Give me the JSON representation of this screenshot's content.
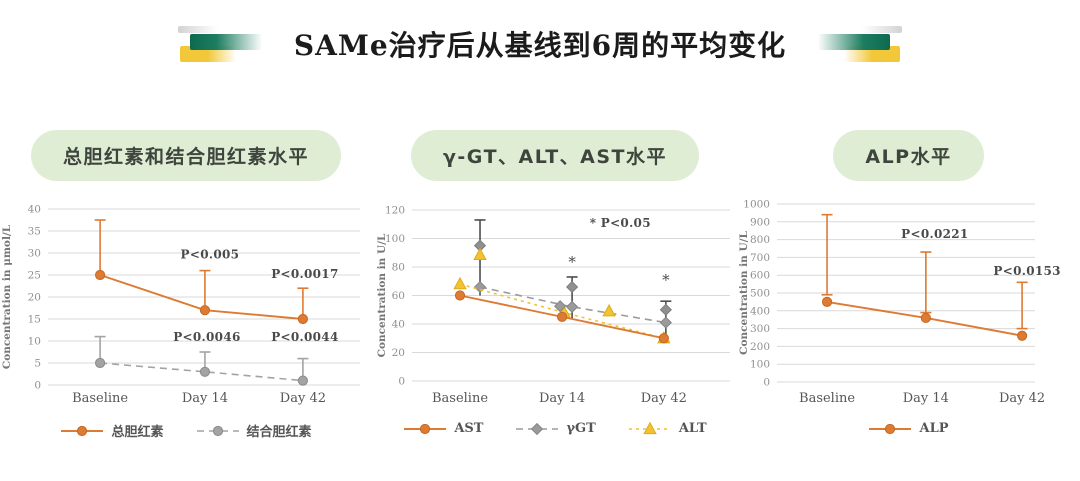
{
  "title": "SAMe治疗后从基线到6周的平均变化",
  "colors": {
    "accent_orange": "#dd7a33",
    "accent_gray": "#a3a3a3",
    "accent_yellow": "#f1c232",
    "errorbar_dark": "#4d4d4d",
    "pill_bg": "#e0edd5",
    "deco_green": "#0d6a4e",
    "deco_yellow": "#f2c83a",
    "grid": "#d9d9d9"
  },
  "chart_data": [
    {
      "type": "line",
      "header": "总胆红素和结合胆红素水平",
      "ylabel": "Concentration in μmol/L",
      "ylim": [
        0,
        40
      ],
      "ystep": 5,
      "grid": true,
      "legend_position": "bottom",
      "categories": [
        "Baseline",
        "Day 14",
        "Day 42"
      ],
      "series": [
        {
          "name": "总胆红素",
          "color": "#dd7a33",
          "stroke": "#c36a22",
          "line": "solid",
          "marker": "circle",
          "z": 2,
          "values": [
            25,
            17,
            15
          ],
          "error_bars": [
            {
              "i": 0,
              "from": 25,
              "to": 37.5
            },
            {
              "i": 1,
              "from": 17,
              "to": 26
            },
            {
              "i": 2,
              "from": 15,
              "to": 22
            }
          ]
        },
        {
          "name": "结合胆红素",
          "color": "#a3a3a3",
          "stroke": "#8a8a8a",
          "line": "dashed",
          "marker": "circle",
          "z": 1,
          "values": [
            5,
            3,
            1
          ],
          "error_bars": [
            {
              "i": 0,
              "from": 5,
              "to": 11
            },
            {
              "i": 1,
              "from": 3,
              "to": 7.5
            },
            {
              "i": 2,
              "from": 1,
              "to": 6
            }
          ]
        }
      ],
      "labels": [
        {
          "text": "P<0.005",
          "i": 1,
          "dx": 5,
          "y": 28.7
        },
        {
          "text": "P<0.0017",
          "i": 2,
          "dx": 2,
          "y": 24.3
        },
        {
          "text": "P<0.0046",
          "i": 1,
          "dx": 2,
          "y": 10
        },
        {
          "text": "P<0.0044",
          "i": 2,
          "dx": 2,
          "y": 10
        }
      ]
    },
    {
      "type": "line",
      "header": "γ-GT、ALT、AST水平",
      "ylabel": "Concentration in U/L",
      "ylim": [
        0,
        120
      ],
      "ystep": 20,
      "grid": true,
      "legend_position": "bottom",
      "categories": [
        "Baseline",
        "Day 14",
        "Day 42"
      ],
      "series": [
        {
          "name": "AST",
          "color": "#dd7a33",
          "stroke": "#c36a22",
          "line": "solid",
          "marker": "circle",
          "z": 3,
          "values": [
            60,
            45,
            30
          ]
        },
        {
          "name": "γGT",
          "color": "#9b9b9b",
          "stroke": "#858585",
          "line": "dashed",
          "marker": "diamond",
          "z": 1,
          "values": [
            66,
            52,
            41
          ],
          "offsets": [
            20,
            10,
            2
          ]
        },
        {
          "name": "ALT",
          "color": "#f1c232",
          "stroke": "#dfac19",
          "line": "dotted",
          "marker": "triangle",
          "z": 2,
          "values": [
            68,
            48,
            30
          ],
          "offsets": [
            0,
            2,
            0
          ]
        }
      ],
      "error_bars": [
        {
          "i": 0,
          "dx": 20,
          "from": 60,
          "to": 113,
          "color": "#4d4d4d"
        },
        {
          "i": 1,
          "dx": 10,
          "from": 44,
          "to": 73,
          "color": "#4d4d4d"
        },
        {
          "i": 2,
          "dx": 2,
          "from": 31,
          "to": 56,
          "color": "#4d4d4d"
        }
      ],
      "extra_markers": [
        {
          "shape": "diamond",
          "i": 0,
          "dx": 20,
          "y": 95,
          "color": "#909090",
          "stroke": "#7d7d7d"
        },
        {
          "shape": "triangle",
          "i": 0,
          "dx": 20,
          "y": 88.5,
          "color": "#f1c232",
          "stroke": "#dfac19"
        },
        {
          "shape": "diamond",
          "i": 1,
          "dx": 10,
          "y": 66,
          "color": "#909090",
          "stroke": "#7d7d7d"
        },
        {
          "shape": "diamond",
          "i": 1,
          "dx": -2,
          "y": 52.5,
          "color": "#9b9b9b",
          "stroke": "#858585"
        },
        {
          "shape": "triangle",
          "i": 1,
          "dx": 47,
          "y": 49,
          "color": "#f1c232",
          "stroke": "#dfac19"
        },
        {
          "shape": "diamond",
          "i": 2,
          "dx": 2,
          "y": 50,
          "color": "#909090",
          "stroke": "#7d7d7d"
        }
      ],
      "labels": [
        {
          "text": "* P<0.05",
          "fx": 0.655,
          "y": 108
        },
        {
          "text": "*",
          "i": 1,
          "dx": 10,
          "y": 80,
          "star": true
        },
        {
          "text": "*",
          "i": 2,
          "dx": 2,
          "y": 67.5,
          "star": true
        }
      ]
    },
    {
      "type": "line",
      "header": "ALP水平",
      "ylabel": "Concentration in U/L",
      "ylim": [
        0,
        1000
      ],
      "ystep": 100,
      "grid": true,
      "legend_position": "bottom",
      "categories": [
        "Baseline",
        "Day 14",
        "Day 42"
      ],
      "series": [
        {
          "name": "ALP",
          "color": "#dd7a33",
          "stroke": "#c36a22",
          "line": "solid",
          "marker": "circle",
          "z": 1,
          "values": [
            450,
            360,
            260
          ]
        }
      ],
      "error_bars": [
        {
          "i": 0,
          "dx": 0,
          "from": 490,
          "to": 940,
          "color": "#dd7a33",
          "caps": "both"
        },
        {
          "i": 1,
          "dx": 0,
          "from": 390,
          "to": 730,
          "color": "#dd7a33",
          "caps": "both"
        },
        {
          "i": 2,
          "dx": 0,
          "from": 300,
          "to": 560,
          "color": "#dd7a33",
          "caps": "both"
        }
      ],
      "labels": [
        {
          "text": "P<0.0221",
          "i": 1,
          "dx": 9,
          "y": 810
        },
        {
          "text": "P<0.0153",
          "i": 2,
          "dx": 5,
          "y": 600
        }
      ]
    }
  ]
}
